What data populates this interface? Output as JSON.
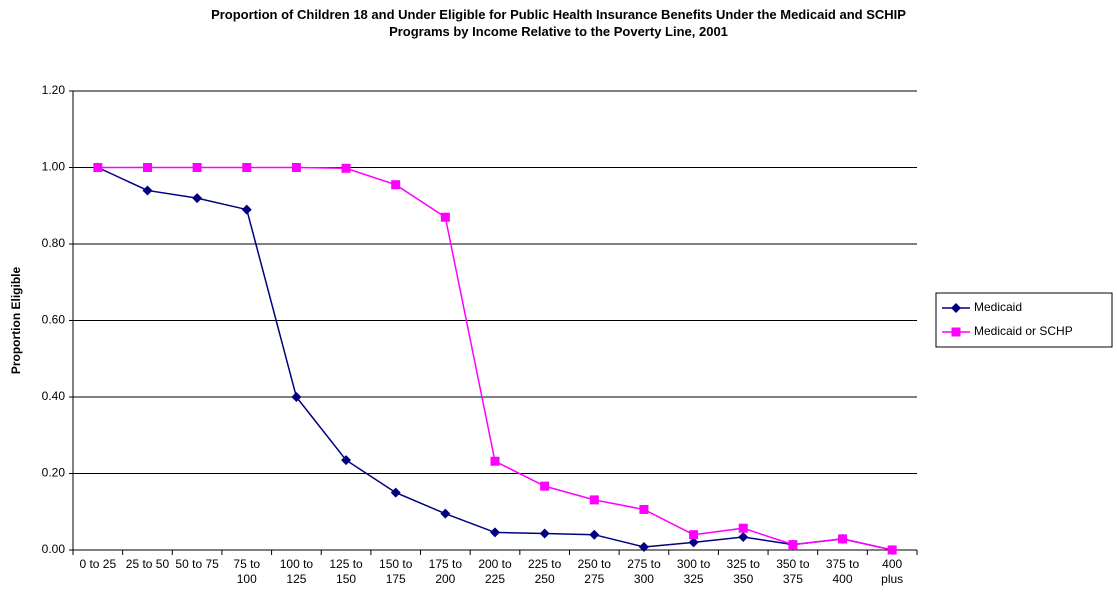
{
  "chart_data": {
    "type": "line",
    "title": "Proportion of Children 18 and Under Eligible for Public Health Insurance Benefits Under the Medicaid and SCHIP Programs by Income Relative to the Poverty Line, 2001",
    "y_label": "Proportion Eligible",
    "categories": [
      "0 to 25",
      "25 to 50",
      "50 to 75",
      "75 to 100",
      "100 to 125",
      "125 to 150",
      "150 to 175",
      "175 to 200",
      "200 to 225",
      "225 to 250",
      "250 to 275",
      "275 to 300",
      "300 to 325",
      "325 to 350",
      "350 to 375",
      "375 to 400",
      "400 plus"
    ],
    "series": [
      {
        "name": "Medicaid",
        "color": "#000080",
        "marker": "diamond",
        "values": [
          1.0,
          0.94,
          0.92,
          0.89,
          0.4,
          0.235,
          0.15,
          0.095,
          0.046,
          0.043,
          0.04,
          0.008,
          0.02,
          0.034,
          0.014,
          0.029,
          0.0
        ]
      },
      {
        "name": "Medicaid or SCHP",
        "color": "#ff00ff",
        "marker": "square",
        "values": [
          1.0,
          1.0,
          1.0,
          1.0,
          1.0,
          0.998,
          0.955,
          0.87,
          0.232,
          0.167,
          0.131,
          0.106,
          0.04,
          0.057,
          0.014,
          0.029,
          0.0
        ]
      }
    ],
    "ylim": [
      0,
      1.2
    ],
    "yticks": [
      {
        "value": 0,
        "label": "0.00"
      },
      {
        "value": 0.2,
        "label": "0.20"
      },
      {
        "value": 0.4,
        "label": "0.40"
      },
      {
        "value": 0.6,
        "label": "0.60"
      },
      {
        "value": 0.8,
        "label": "0.80"
      },
      {
        "value": 1.0,
        "label": "1.00"
      },
      {
        "value": 1.2,
        "label": "1.20"
      }
    ],
    "grid": true,
    "legend": "right"
  }
}
